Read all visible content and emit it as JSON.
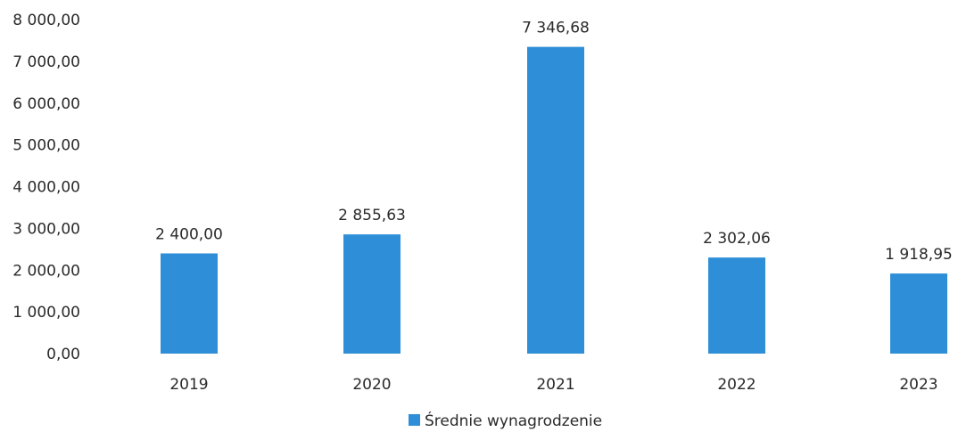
{
  "chart_data": {
    "type": "bar",
    "categories": [
      "2019",
      "2020",
      "2021",
      "2022",
      "2023"
    ],
    "series": [
      {
        "name": "Średnie wynagrodzenie",
        "values": [
          2400.0,
          2855.63,
          7346.68,
          2302.06,
          1918.95
        ],
        "data_labels": [
          "2 400,00",
          "2 855,63",
          "7 346,68",
          "2 302,06",
          "1 918,95"
        ],
        "color": "#2e8fd8"
      }
    ],
    "y_ticks": [
      "0,00",
      "1 000,00",
      "2 000,00",
      "3 000,00",
      "4 000,00",
      "5 000,00",
      "6 000,00",
      "7 000,00",
      "8 000,00"
    ],
    "ylim": [
      0,
      8000
    ],
    "grid": false,
    "legend_position": "bottom"
  }
}
